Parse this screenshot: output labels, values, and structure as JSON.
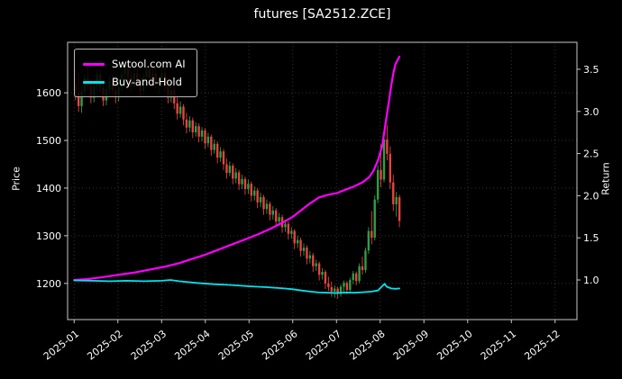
{
  "figure": {
    "background": "#000000",
    "text_color": "#ffffff"
  },
  "chart_data": {
    "type": "candlestick+line",
    "title": "futures [SA2512.ZCE]",
    "ylabel_left": "Price",
    "ylabel_right": "Return",
    "legend_position": "upper-left",
    "grid": true,
    "x_tick_labels": [
      "2025-01",
      "2025-02",
      "2025-03",
      "2025-04",
      "2025-05",
      "2025-06",
      "2025-07",
      "2025-08",
      "2025-09",
      "2025-10",
      "2025-11",
      "2025-12"
    ],
    "xlim": [
      -0.15,
      11.5
    ],
    "price_ylim": [
      1124,
      1706
    ],
    "return_ylim": [
      0.53,
      3.82
    ],
    "price_ticks": [
      1200,
      1300,
      1400,
      1500,
      1600
    ],
    "return_ticks": [
      1.0,
      1.5,
      2.0,
      2.5,
      3.0,
      3.5
    ],
    "candles": {
      "up_color": "#2f9e44",
      "down_color": "#e8433f",
      "t_start": 0.03,
      "t_end": 7.44,
      "ohlc": [
        [
          1618,
          1652,
          1585,
          1600
        ],
        [
          1600,
          1641,
          1560,
          1572
        ],
        [
          1572,
          1612,
          1558,
          1603
        ],
        [
          1603,
          1640,
          1592,
          1630
        ],
        [
          1630,
          1652,
          1605,
          1615
        ],
        [
          1615,
          1628,
          1578,
          1590
        ],
        [
          1590,
          1625,
          1580,
          1614
        ],
        [
          1614,
          1648,
          1602,
          1638
        ],
        [
          1638,
          1650,
          1600,
          1611
        ],
        [
          1611,
          1622,
          1572,
          1584
        ],
        [
          1584,
          1618,
          1574,
          1607
        ],
        [
          1607,
          1634,
          1596,
          1625
        ],
        [
          1625,
          1638,
          1595,
          1605
        ],
        [
          1605,
          1620,
          1578,
          1592
        ],
        [
          1592,
          1621,
          1582,
          1612
        ],
        [
          1612,
          1648,
          1604,
          1639
        ],
        [
          1639,
          1656,
          1626,
          1652
        ],
        [
          1652,
          1655,
          1622,
          1633
        ],
        [
          1633,
          1645,
          1602,
          1614
        ],
        [
          1614,
          1650,
          1606,
          1641
        ],
        [
          1641,
          1655,
          1612,
          1624
        ],
        [
          1624,
          1638,
          1592,
          1604
        ],
        [
          1604,
          1642,
          1596,
          1633
        ],
        [
          1633,
          1655,
          1624,
          1651
        ],
        [
          1651,
          1655,
          1620,
          1631
        ],
        [
          1631,
          1648,
          1610,
          1640
        ],
        [
          1640,
          1654,
          1608,
          1619
        ],
        [
          1619,
          1636,
          1598,
          1628
        ],
        [
          1628,
          1650,
          1612,
          1642
        ],
        [
          1642,
          1656,
          1602,
          1613
        ],
        [
          1613,
          1625,
          1578,
          1590
        ],
        [
          1590,
          1616,
          1580,
          1606
        ],
        [
          1606,
          1612,
          1566,
          1578
        ],
        [
          1578,
          1590,
          1544,
          1556
        ],
        [
          1556,
          1582,
          1548,
          1571
        ],
        [
          1571,
          1576,
          1532,
          1544
        ],
        [
          1544,
          1558,
          1515,
          1527
        ],
        [
          1527,
          1551,
          1518,
          1542
        ],
        [
          1542,
          1548,
          1505,
          1517
        ],
        [
          1517,
          1538,
          1508,
          1530
        ],
        [
          1530,
          1536,
          1496,
          1508
        ],
        [
          1508,
          1528,
          1498,
          1521
        ],
        [
          1521,
          1526,
          1482,
          1494
        ],
        [
          1494,
          1516,
          1486,
          1508
        ],
        [
          1508,
          1512,
          1468,
          1480
        ],
        [
          1480,
          1502,
          1472,
          1493
        ],
        [
          1493,
          1498,
          1452,
          1464
        ],
        [
          1464,
          1486,
          1455,
          1477
        ],
        [
          1477,
          1482,
          1438,
          1450
        ],
        [
          1450,
          1462,
          1420,
          1432
        ],
        [
          1432,
          1456,
          1425,
          1447
        ],
        [
          1447,
          1452,
          1408,
          1420
        ],
        [
          1420,
          1442,
          1410,
          1433
        ],
        [
          1433,
          1438,
          1396,
          1408
        ],
        [
          1408,
          1428,
          1398,
          1419
        ],
        [
          1419,
          1424,
          1386,
          1398
        ],
        [
          1398,
          1418,
          1388,
          1409
        ],
        [
          1409,
          1414,
          1372,
          1384
        ],
        [
          1384,
          1404,
          1374,
          1395
        ],
        [
          1395,
          1400,
          1358,
          1370
        ],
        [
          1370,
          1390,
          1360,
          1381
        ],
        [
          1381,
          1386,
          1344,
          1356
        ],
        [
          1356,
          1376,
          1346,
          1367
        ],
        [
          1367,
          1372,
          1332,
          1344
        ],
        [
          1344,
          1362,
          1334,
          1353
        ],
        [
          1353,
          1358,
          1318,
          1330
        ],
        [
          1330,
          1348,
          1320,
          1339
        ],
        [
          1339,
          1344,
          1306,
          1318
        ],
        [
          1318,
          1334,
          1308,
          1325
        ],
        [
          1325,
          1330,
          1292,
          1304
        ],
        [
          1304,
          1318,
          1294,
          1310
        ],
        [
          1310,
          1314,
          1272,
          1284
        ],
        [
          1284,
          1300,
          1274,
          1291
        ],
        [
          1291,
          1296,
          1256,
          1268
        ],
        [
          1268,
          1284,
          1258,
          1275
        ],
        [
          1275,
          1280,
          1240,
          1252
        ],
        [
          1252,
          1268,
          1242,
          1259
        ],
        [
          1259,
          1264,
          1224,
          1236
        ],
        [
          1236,
          1250,
          1226,
          1242
        ],
        [
          1242,
          1246,
          1206,
          1218
        ],
        [
          1218,
          1232,
          1208,
          1224
        ],
        [
          1224,
          1228,
          1188,
          1200
        ],
        [
          1200,
          1214,
          1184,
          1192
        ],
        [
          1192,
          1204,
          1172,
          1183
        ],
        [
          1183,
          1196,
          1170,
          1189
        ],
        [
          1189,
          1193,
          1168,
          1178
        ],
        [
          1178,
          1198,
          1172,
          1193
        ],
        [
          1193,
          1206,
          1180,
          1201
        ],
        [
          1201,
          1205,
          1178,
          1186
        ],
        [
          1186,
          1212,
          1181,
          1207
        ],
        [
          1207,
          1226,
          1198,
          1221
        ],
        [
          1221,
          1225,
          1196,
          1205
        ],
        [
          1205,
          1242,
          1200,
          1236
        ],
        [
          1236,
          1256,
          1218,
          1228
        ],
        [
          1228,
          1275,
          1222,
          1269
        ],
        [
          1269,
          1318,
          1262,
          1310
        ],
        [
          1310,
          1352,
          1282,
          1296
        ],
        [
          1296,
          1385,
          1290,
          1376
        ],
        [
          1376,
          1448,
          1368,
          1438
        ],
        [
          1438,
          1492,
          1402,
          1418
        ],
        [
          1418,
          1512,
          1412,
          1502
        ],
        [
          1502,
          1532,
          1458,
          1472
        ],
        [
          1472,
          1488,
          1398,
          1412
        ],
        [
          1412,
          1428,
          1352,
          1366
        ],
        [
          1366,
          1392,
          1340,
          1381
        ],
        [
          1381,
          1386,
          1318,
          1331
        ]
      ]
    },
    "series": [
      {
        "name": "Swtool.com AI",
        "color": "#ff00ff",
        "points": [
          [
            0,
            1.0
          ],
          [
            0.3,
            1.01
          ],
          [
            0.6,
            1.03
          ],
          [
            1.0,
            1.06
          ],
          [
            1.4,
            1.09
          ],
          [
            1.8,
            1.13
          ],
          [
            2.1,
            1.16
          ],
          [
            2.4,
            1.2
          ],
          [
            2.7,
            1.25
          ],
          [
            3.0,
            1.3
          ],
          [
            3.3,
            1.36
          ],
          [
            3.6,
            1.42
          ],
          [
            3.9,
            1.48
          ],
          [
            4.2,
            1.54
          ],
          [
            4.5,
            1.61
          ],
          [
            4.8,
            1.69
          ],
          [
            5.0,
            1.75
          ],
          [
            5.2,
            1.83
          ],
          [
            5.4,
            1.91
          ],
          [
            5.6,
            1.98
          ],
          [
            5.8,
            2.01
          ],
          [
            6.0,
            2.03
          ],
          [
            6.2,
            2.07
          ],
          [
            6.4,
            2.11
          ],
          [
            6.6,
            2.16
          ],
          [
            6.75,
            2.22
          ],
          [
            6.85,
            2.3
          ],
          [
            6.95,
            2.42
          ],
          [
            7.05,
            2.6
          ],
          [
            7.1,
            2.78
          ],
          [
            7.15,
            2.95
          ],
          [
            7.2,
            3.12
          ],
          [
            7.25,
            3.3
          ],
          [
            7.3,
            3.45
          ],
          [
            7.35,
            3.56
          ],
          [
            7.44,
            3.65
          ]
        ]
      },
      {
        "name": "Buy-and-Hold",
        "color": "#00e5ee",
        "points": [
          [
            0,
            0.995
          ],
          [
            0.4,
            0.99
          ],
          [
            0.8,
            0.985
          ],
          [
            1.2,
            0.99
          ],
          [
            1.6,
            0.985
          ],
          [
            2.0,
            0.99
          ],
          [
            2.2,
            1.0
          ],
          [
            2.4,
            0.985
          ],
          [
            2.8,
            0.965
          ],
          [
            3.2,
            0.95
          ],
          [
            3.6,
            0.94
          ],
          [
            4.0,
            0.925
          ],
          [
            4.4,
            0.915
          ],
          [
            4.8,
            0.9
          ],
          [
            5.0,
            0.89
          ],
          [
            5.2,
            0.875
          ],
          [
            5.4,
            0.862
          ],
          [
            5.6,
            0.852
          ],
          [
            5.8,
            0.848
          ],
          [
            6.0,
            0.845
          ],
          [
            6.2,
            0.85
          ],
          [
            6.4,
            0.848
          ],
          [
            6.6,
            0.855
          ],
          [
            6.8,
            0.862
          ],
          [
            6.95,
            0.875
          ],
          [
            7.05,
            0.93
          ],
          [
            7.1,
            0.955
          ],
          [
            7.15,
            0.92
          ],
          [
            7.25,
            0.9
          ],
          [
            7.35,
            0.895
          ],
          [
            7.44,
            0.9
          ]
        ]
      }
    ]
  }
}
